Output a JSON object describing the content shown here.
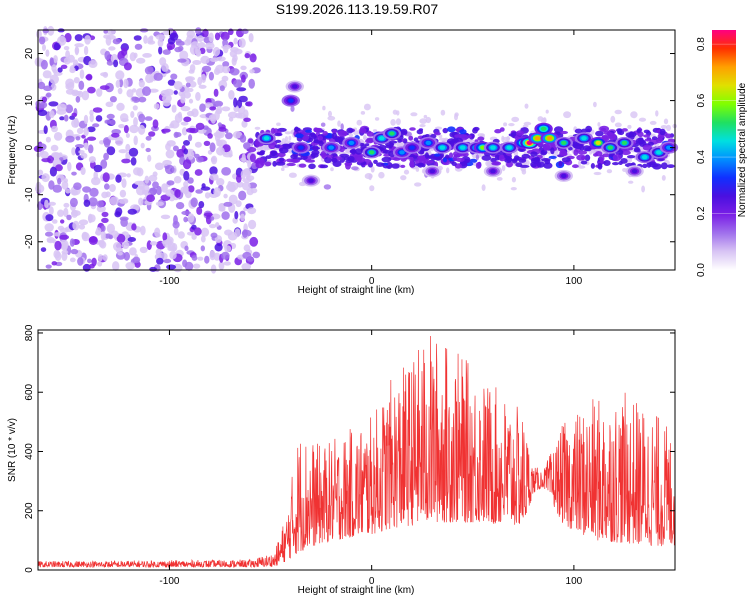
{
  "title": "S199.2026.113.19.59.R07",
  "colors": {
    "snr_line": "#f03232",
    "colormap": [
      "#ffffff",
      "#d8c4f4",
      "#a070ec",
      "#7a1fe6",
      "#4a10e0",
      "#1030ff",
      "#0090ff",
      "#00e0e0",
      "#20e060",
      "#80ff00",
      "#e0e000",
      "#ffa000",
      "#ff3000",
      "#ff0080"
    ]
  },
  "chart_data": [
    {
      "type": "heatmap",
      "title": "",
      "xlabel": "Height of straight line (km)",
      "ylabel": "Frequency (Hz)",
      "xlim": [
        -165,
        150
      ],
      "ylim": [
        -26,
        25
      ],
      "xticks": [
        -100,
        0,
        100
      ],
      "xtick_labels": [
        "-100",
        "0",
        "100"
      ],
      "yticks": [
        -20,
        -10,
        0,
        10,
        20
      ],
      "ytick_labels": [
        "-20",
        "-10",
        "0",
        "10",
        "20"
      ],
      "noise_region_x": [
        -165,
        -57
      ],
      "signal_band_center_hz": 0,
      "signal_band_halfwidth_hz": 4,
      "colorbar": {
        "label": "Normalized spectral amplitude",
        "range": [
          0.0,
          0.85
        ],
        "ticks": [
          0.0,
          0.2,
          0.4,
          0.6,
          0.8
        ],
        "tick_labels": [
          "0.0",
          "0.2",
          "0.4",
          "0.6",
          "0.8"
        ]
      },
      "blobs": [
        {
          "x": -40,
          "y": 10,
          "a": 0.35
        },
        {
          "x": -38,
          "y": 13,
          "a": 0.25
        },
        {
          "x": -52,
          "y": 2,
          "a": 0.45
        },
        {
          "x": -35,
          "y": 0,
          "a": 0.35
        },
        {
          "x": -30,
          "y": -7,
          "a": 0.25
        },
        {
          "x": -20,
          "y": 0,
          "a": 0.4
        },
        {
          "x": -10,
          "y": 1,
          "a": 0.4
        },
        {
          "x": 0,
          "y": -1,
          "a": 0.5
        },
        {
          "x": 5,
          "y": 2,
          "a": 0.45
        },
        {
          "x": 10,
          "y": 3,
          "a": 0.5
        },
        {
          "x": 15,
          "y": -1,
          "a": 0.4
        },
        {
          "x": 20,
          "y": 0,
          "a": 0.35
        },
        {
          "x": 28,
          "y": 1,
          "a": 0.4
        },
        {
          "x": 35,
          "y": 0,
          "a": 0.45
        },
        {
          "x": 45,
          "y": 0,
          "a": 0.45
        },
        {
          "x": 52,
          "y": 0,
          "a": 0.5
        },
        {
          "x": 55,
          "y": 0,
          "a": 0.6
        },
        {
          "x": 60,
          "y": 0,
          "a": 0.45
        },
        {
          "x": 68,
          "y": 0,
          "a": 0.45
        },
        {
          "x": 75,
          "y": 1,
          "a": 0.6
        },
        {
          "x": 78,
          "y": 1,
          "a": 0.85
        },
        {
          "x": 82,
          "y": 2,
          "a": 0.75
        },
        {
          "x": 85,
          "y": 4,
          "a": 0.55
        },
        {
          "x": 88,
          "y": 2,
          "a": 0.75
        },
        {
          "x": 95,
          "y": 1,
          "a": 0.5
        },
        {
          "x": 105,
          "y": 2,
          "a": 0.45
        },
        {
          "x": 112,
          "y": 1,
          "a": 0.65
        },
        {
          "x": 118,
          "y": 0,
          "a": 0.5
        },
        {
          "x": 125,
          "y": 1,
          "a": 0.5
        },
        {
          "x": 135,
          "y": -2,
          "a": 0.45
        },
        {
          "x": 142,
          "y": -1,
          "a": 0.45
        },
        {
          "x": 147,
          "y": 0,
          "a": 0.4
        },
        {
          "x": 60,
          "y": -5,
          "a": 0.25
        },
        {
          "x": 30,
          "y": -5,
          "a": 0.25
        },
        {
          "x": 95,
          "y": -6,
          "a": 0.25
        },
        {
          "x": 130,
          "y": -5,
          "a": 0.25
        }
      ]
    },
    {
      "type": "line",
      "title": "",
      "xlabel": "Height of straight line (km)",
      "ylabel": "SNR (10 * v/v)",
      "xlim": [
        -165,
        150
      ],
      "ylim": [
        0,
        810
      ],
      "xticks": [
        -100,
        0,
        100
      ],
      "xtick_labels": [
        "-100",
        "0",
        "100"
      ],
      "yticks": [
        0,
        200,
        400,
        600,
        800
      ],
      "ytick_labels": [
        "0",
        "200",
        "400",
        "600",
        "800"
      ],
      "envelope": [
        {
          "x": -165,
          "base": 10,
          "peak": 30
        },
        {
          "x": -60,
          "base": 10,
          "peak": 35
        },
        {
          "x": -48,
          "base": 12,
          "peak": 60
        },
        {
          "x": -42,
          "base": 30,
          "peak": 200
        },
        {
          "x": -36,
          "base": 60,
          "peak": 480
        },
        {
          "x": -25,
          "base": 90,
          "peak": 420
        },
        {
          "x": -10,
          "base": 110,
          "peak": 480
        },
        {
          "x": 0,
          "base": 120,
          "peak": 520
        },
        {
          "x": 10,
          "base": 140,
          "peak": 650
        },
        {
          "x": 20,
          "base": 150,
          "peak": 720
        },
        {
          "x": 28,
          "base": 160,
          "peak": 810
        },
        {
          "x": 40,
          "base": 160,
          "peak": 760
        },
        {
          "x": 55,
          "base": 160,
          "peak": 650
        },
        {
          "x": 65,
          "base": 150,
          "peak": 600
        },
        {
          "x": 75,
          "base": 150,
          "peak": 530
        },
        {
          "x": 80,
          "base": 260,
          "peak": 350
        },
        {
          "x": 85,
          "base": 280,
          "peak": 340
        },
        {
          "x": 95,
          "base": 150,
          "peak": 500
        },
        {
          "x": 110,
          "base": 100,
          "peak": 580
        },
        {
          "x": 125,
          "base": 90,
          "peak": 600
        },
        {
          "x": 140,
          "base": 80,
          "peak": 540
        },
        {
          "x": 150,
          "base": 80,
          "peak": 460
        }
      ]
    }
  ]
}
